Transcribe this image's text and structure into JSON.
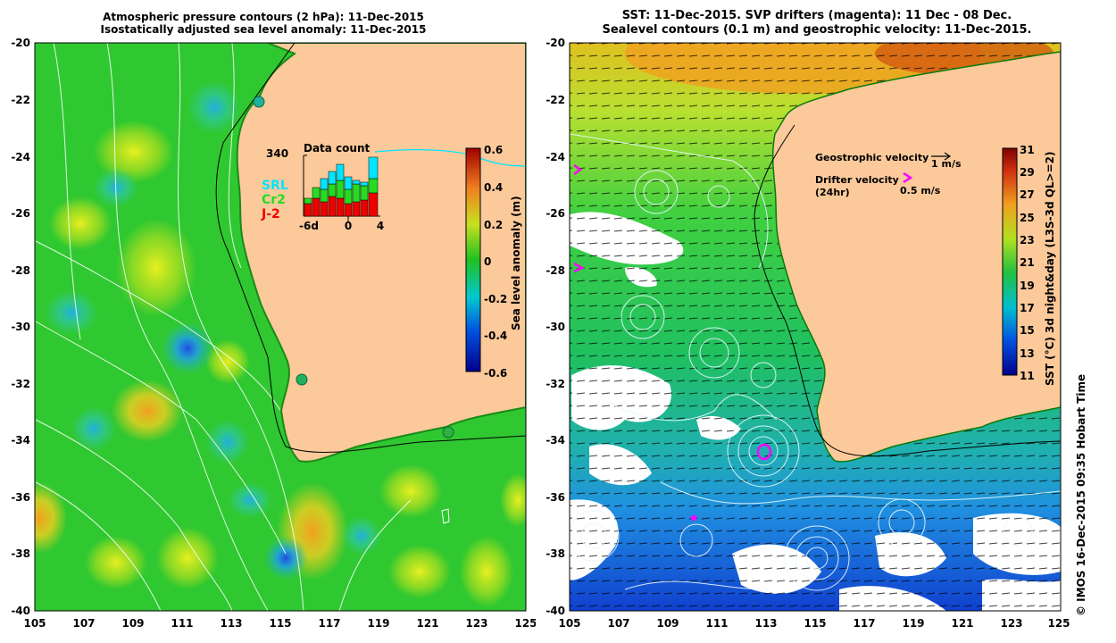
{
  "left_panel": {
    "title_line1": "Atmospheric pressure contours (2 hPa): 11-Dec-2015",
    "title_line2": "Isostatically adjusted sea level anomaly: 11-Dec-2015",
    "colorbar_label": "Sea level anomaly (m)",
    "colorbar_ticks": [
      "0.6",
      "0.4",
      "0.2",
      "0",
      "-0.2",
      "-0.4",
      "-0.6"
    ],
    "inset": {
      "title": "Data count",
      "max_label": "340",
      "x_ticks": [
        "-6d",
        "0",
        "4"
      ],
      "series": [
        {
          "name": "SRL",
          "color": "#00e5ff"
        },
        {
          "name": "Cr2",
          "color": "#22dd22"
        },
        {
          "name": "J-2",
          "color": "#ee0000"
        }
      ]
    }
  },
  "right_panel": {
    "title_line1": "SST: 11-Dec-2015. SVP drifters (magenta): 11 Dec - 08 Dec.",
    "title_line2": "Sealevel contours (0.1 m) and geostrophic velocity: 11-Dec-2015.",
    "colorbar_label": "SST (°C) 3d night&day (L3S-3d QL>=2)",
    "colorbar_ticks": [
      "31",
      "29",
      "27",
      "25",
      "23",
      "21",
      "19",
      "17",
      "15",
      "13",
      "11"
    ],
    "legend_geo_label": "Geostrophic velocity",
    "legend_geo_value": "1 m/s",
    "legend_drifter_label": "Drifter velocity",
    "legend_drifter_sub": "(24hr)",
    "legend_drifter_value": "0.5 m/s"
  },
  "axes": {
    "lon_ticks": [
      "105",
      "107",
      "109",
      "111",
      "113",
      "115",
      "117",
      "119",
      "121",
      "123",
      "125"
    ],
    "lat_ticks": [
      "-20",
      "-22",
      "-24",
      "-26",
      "-28",
      "-30",
      "-32",
      "-34",
      "-36",
      "-38",
      "-40"
    ]
  },
  "credit": "© IMOS 16-Dec-2015 09:35 Hobart Time",
  "colors": {
    "land": "#fbc99a",
    "ocean_green": "#22cc22",
    "magenta": "#ff00ff"
  }
}
